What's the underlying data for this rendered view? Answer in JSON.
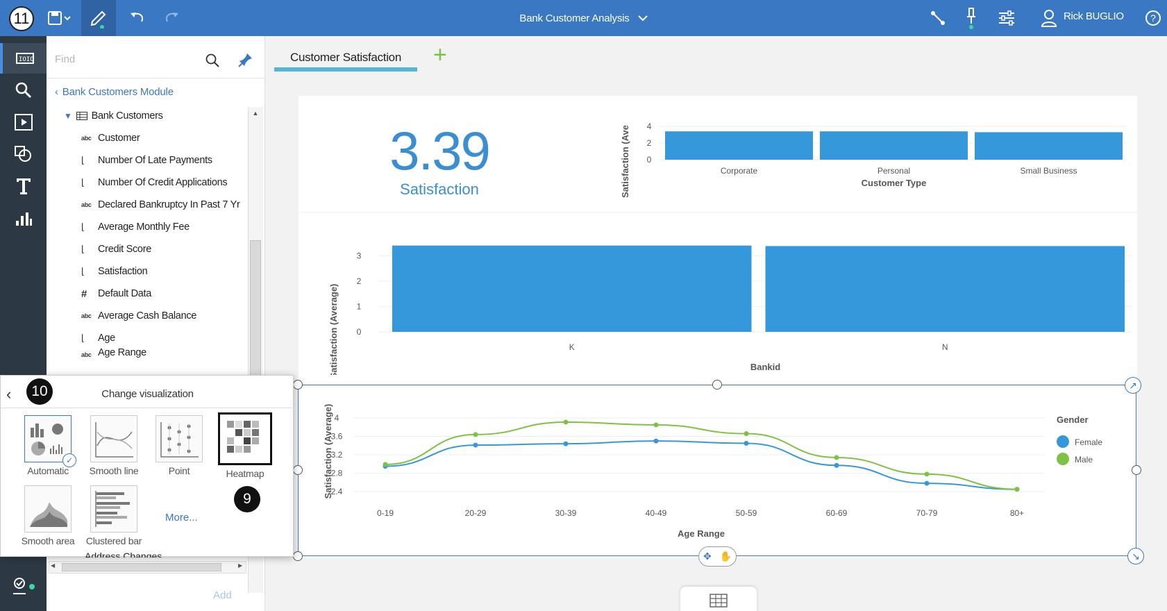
{
  "topbar": {
    "step_badge": "11",
    "report_title": "Bank Customer Analysis",
    "user_name": "Rick BUGLIO",
    "help_label": "?"
  },
  "datapanel": {
    "find_placeholder": "Find",
    "module_link": "Bank Customers Module",
    "table_name": "Bank Customers",
    "fields": [
      {
        "icon": "abc",
        "label": "Customer"
      },
      {
        "icon": "measure",
        "label": "Number Of Late Payments"
      },
      {
        "icon": "measure",
        "label": "Number Of Credit Applications"
      },
      {
        "icon": "abc",
        "label": "Declared Bankruptcy In Past 7 Yr"
      },
      {
        "icon": "measure",
        "label": "Average Monthly Fee"
      },
      {
        "icon": "measure",
        "label": "Credit Score"
      },
      {
        "icon": "measure",
        "label": "Satisfaction"
      },
      {
        "icon": "#",
        "label": "Default Data"
      },
      {
        "icon": "abc",
        "label": "Average Cash Balance"
      },
      {
        "icon": "measure",
        "label": "Age"
      },
      {
        "icon": "abc",
        "label": "Age Range"
      }
    ],
    "partial_bottom_row": "Address Changes",
    "add_label": "Add"
  },
  "tabs": {
    "active_tab": "Customer Satisfaction",
    "add_tab_symbol": "+"
  },
  "kpi": {
    "value": "3.39",
    "label": "Satisfaction"
  },
  "viz_popup": {
    "title": "Change visualization",
    "step_badge_10": "10",
    "step_badge_9": "9",
    "items": [
      "Automatic",
      "Smooth line",
      "Point",
      "Heatmap",
      "Smooth area",
      "Clustered bar"
    ],
    "more_label": "More..."
  },
  "colors": {
    "topbar": "#3a78c3",
    "rail": "#2d3845",
    "bar_blue": "#3498db",
    "female": "#3498db",
    "male": "#7dc242"
  },
  "chart_data": [
    {
      "type": "bar",
      "title": "",
      "xlabel": "Customer Type",
      "ylabel": "Satisfaction (Ave",
      "categories": [
        "Corporate",
        "Personal",
        "Small Business"
      ],
      "values": [
        3.4,
        3.4,
        3.3
      ],
      "ylim": [
        0,
        4
      ],
      "yticks": [
        "4",
        "2",
        "0"
      ]
    },
    {
      "type": "bar",
      "title": "",
      "xlabel": "Bankid",
      "ylabel": "Satisfaction (Average)",
      "categories": [
        "K",
        "N"
      ],
      "values": [
        3.4,
        3.38
      ],
      "ylim": [
        0,
        3.5
      ],
      "yticks": [
        "3",
        "2",
        "1",
        "0"
      ]
    },
    {
      "type": "line",
      "title": "",
      "xlabel": "Age Range",
      "ylabel": "Satisfaction (Average)",
      "legend_title": "Gender",
      "categories": [
        "0-19",
        "20-29",
        "30-39",
        "40-49",
        "50-59",
        "60-69",
        "70-79",
        "80+"
      ],
      "ylim": [
        2.4,
        4
      ],
      "yticks": [
        "4",
        "3.6",
        "3.2",
        "2.8",
        "2.4"
      ],
      "series": [
        {
          "name": "Female",
          "values": [
            2.95,
            3.41,
            3.44,
            3.5,
            3.45,
            2.97,
            2.58,
            2.45
          ]
        },
        {
          "name": "Male",
          "values": [
            2.99,
            3.64,
            3.91,
            3.85,
            3.66,
            3.14,
            2.78,
            2.45
          ]
        }
      ]
    }
  ]
}
